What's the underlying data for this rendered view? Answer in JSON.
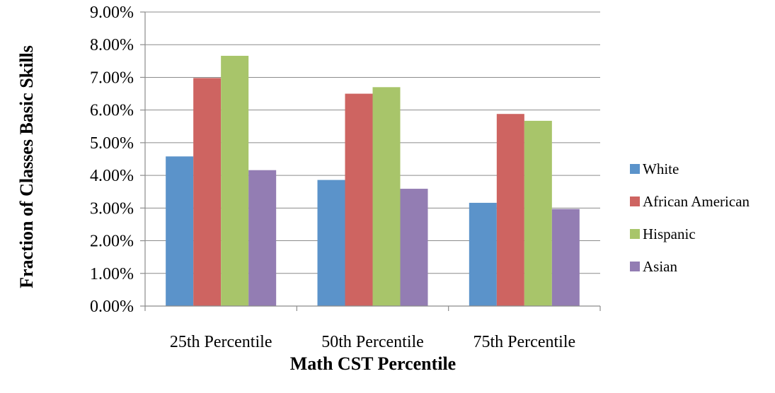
{
  "chart_data": {
    "type": "bar",
    "title": "",
    "xlabel": "Math CST Percentile",
    "ylabel": "Fraction of Classes Basic Skills",
    "categories": [
      "25th Percentile",
      "50th Percentile",
      "75th Percentile"
    ],
    "series": [
      {
        "name": "White",
        "color": "#5B93CA",
        "values": [
          4.58,
          3.86,
          3.16
        ]
      },
      {
        "name": "African American",
        "color": "#CE6461",
        "values": [
          6.98,
          6.5,
          5.88
        ]
      },
      {
        "name": "Hispanic",
        "color": "#A8C56A",
        "values": [
          7.66,
          6.7,
          5.67
        ]
      },
      {
        "name": "Asian",
        "color": "#937DB3",
        "values": [
          4.16,
          3.59,
          2.97
        ]
      }
    ],
    "ylim": [
      0,
      9
    ],
    "yticks": [
      "0.00%",
      "1.00%",
      "2.00%",
      "3.00%",
      "4.00%",
      "5.00%",
      "6.00%",
      "7.00%",
      "8.00%",
      "9.00%"
    ],
    "grid": true,
    "legend_position": "right"
  }
}
